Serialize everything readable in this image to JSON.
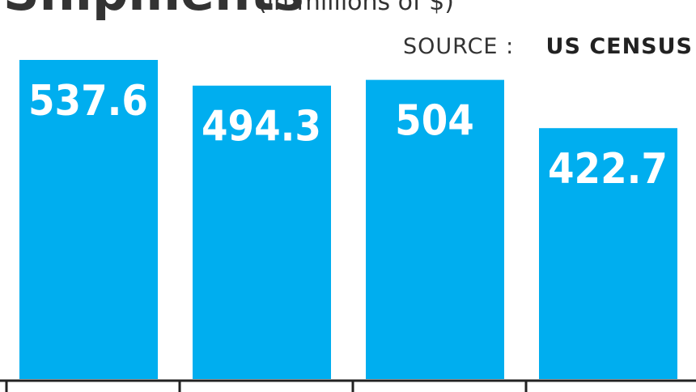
{
  "chart_data": {
    "type": "bar",
    "title": "Shipments",
    "subtitle": "(in millions of $)",
    "source_label": "SOURCE :",
    "source": "US CENSUS",
    "categories": [
      null,
      null,
      null,
      null
    ],
    "values": [
      537.6,
      494.3,
      504,
      422.7
    ],
    "color": "#00aeef"
  }
}
